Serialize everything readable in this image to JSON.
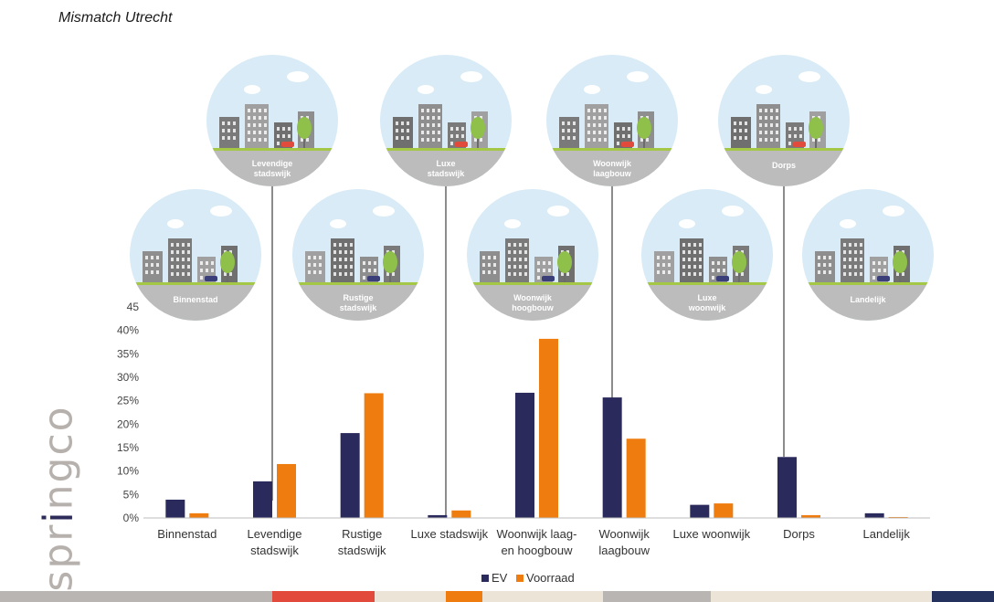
{
  "title": "Mismatch Utrecht",
  "logo": {
    "text_a": "spr",
    "dot": "i",
    "text_b": "ngco"
  },
  "colors": {
    "ev": "#2b2a5c",
    "voorraad": "#ee7c0e"
  },
  "chart_data": {
    "type": "bar",
    "categories": [
      "Binnenstad",
      "Levendige stadswijk",
      "Rustige stadswijk",
      "Luxe stadswijk",
      "Woonwijk laag- en hoogbouw",
      "Woonwijk laagbouw",
      "Luxe woonwijk",
      "Dorps",
      "Landelijk"
    ],
    "category_lines": [
      [
        "Binnenstad"
      ],
      [
        "Levendige",
        "stadswijk"
      ],
      [
        "Rustige",
        "stadswijk"
      ],
      [
        "Luxe stadswijk"
      ],
      [
        "Woonwijk laag-",
        "en hoogbouw"
      ],
      [
        "Woonwijk",
        "laagbouw"
      ],
      [
        "Luxe woonwijk"
      ],
      [
        "Dorps"
      ],
      [
        "Landelijk"
      ]
    ],
    "series": [
      {
        "name": "EV",
        "values": [
          3.9,
          7.8,
          18.1,
          0.6,
          26.7,
          25.7,
          2.8,
          13.0,
          1.0
        ]
      },
      {
        "name": "Voorraad",
        "values": [
          1.0,
          11.5,
          26.6,
          1.6,
          38.2,
          16.9,
          3.1,
          0.6,
          0.2
        ]
      }
    ],
    "ylim": [
      0,
      45
    ],
    "yticks": [
      0,
      5,
      10,
      15,
      20,
      25,
      30,
      35,
      40,
      45
    ],
    "ytick_labels": [
      "0%",
      "5%",
      "10%",
      "15%",
      "20%",
      "25%",
      "30%",
      "35%",
      "40%",
      "45"
    ],
    "legend_position": "bottom",
    "grid": false,
    "illustrations": [
      {
        "lines": [
          "Binnenstad"
        ],
        "icon": "city-center-illustration"
      },
      {
        "lines": [
          "Levendige",
          "stadswijk"
        ],
        "icon": "lively-district-illustration"
      },
      {
        "lines": [
          "Rustige",
          "stadswijk"
        ],
        "icon": "quiet-district-illustration"
      },
      {
        "lines": [
          "Luxe",
          "stadswijk"
        ],
        "icon": "luxury-district-illustration"
      },
      {
        "lines": [
          "Woonwijk",
          "hoogbouw"
        ],
        "icon": "highrise-neighborhood-illustration"
      },
      {
        "lines": [
          "Woonwijk",
          "laagbouw"
        ],
        "icon": "lowrise-neighborhood-illustration"
      },
      {
        "lines": [
          "Luxe",
          "woonwijk"
        ],
        "icon": "luxury-neighborhood-illustration"
      },
      {
        "lines": [
          "Dorps"
        ],
        "icon": "village-illustration"
      },
      {
        "lines": [
          "Landelijk"
        ],
        "icon": "rural-illustration"
      }
    ]
  }
}
